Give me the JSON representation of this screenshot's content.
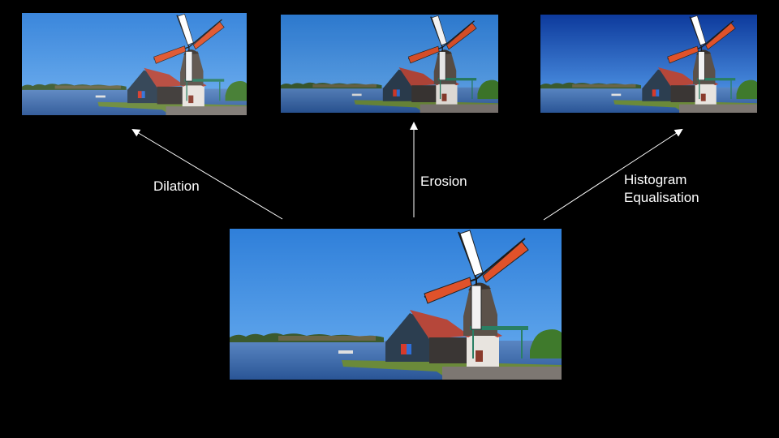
{
  "labels": {
    "dilation": "Dilation",
    "erosion": "Erosion",
    "histogram_line1": "Histogram",
    "histogram_line2": "Equalisation"
  },
  "icons": {
    "arrow": "arrow-icon",
    "windmill_photo": "windmill-photo"
  },
  "colors": {
    "background": "#000000",
    "sky": "#3a86d8",
    "water": "#2f5f9e",
    "sail": "#e0522a",
    "text": "#ffffff"
  }
}
